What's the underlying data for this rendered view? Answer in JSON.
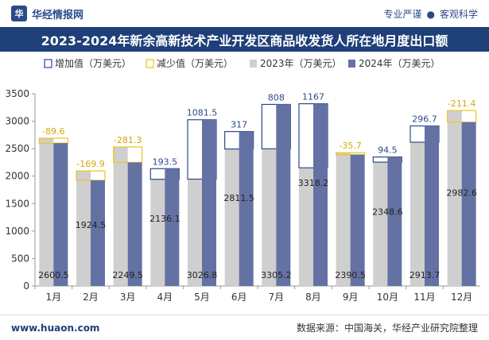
{
  "header": {
    "brand": "华经情报网",
    "slogan_left": "专业严谨",
    "slogan_sep": "●",
    "slogan_right": "客观科学"
  },
  "title": "2023-2024年新余高新技术产业开发区商品收发货人所在地月度出口额",
  "footer": {
    "url": "www.huaon.com",
    "source": "数据来源：中国海关，华经产业研究院整理"
  },
  "colors": {
    "bar2023": "#cfcfcf",
    "bar2024": "#6472a3",
    "increase": "#2b4a8a",
    "decrease": "#f0c419",
    "title_bg": "#1f3f78"
  },
  "chart_data": {
    "type": "bar",
    "categories": [
      "1月",
      "2月",
      "3月",
      "4月",
      "5月",
      "6月",
      "7月",
      "8月",
      "9月",
      "10月",
      "11月",
      "12月"
    ],
    "series": [
      {
        "name": "2023年（万美元）",
        "values": [
          2690.1,
          2094.4,
          2530.8,
          1942.6,
          1945.3,
          2494.5,
          2497.2,
          2151.2,
          2426.2,
          2254.1,
          2617.1,
          3194.1
        ]
      },
      {
        "name": "2024年（万美元）",
        "values": [
          2600.5,
          1924.5,
          2249.5,
          2136.1,
          3026.8,
          2811.5,
          3305.2,
          3318.2,
          2390.5,
          2348.6,
          2913.7,
          2982.6
        ]
      }
    ],
    "change_series": [
      {
        "name": "增加值（万美元）",
        "kind": "increase"
      },
      {
        "name": "减少值（万美元）",
        "kind": "decrease"
      }
    ],
    "change": [
      -89.6,
      -169.9,
      -281.3,
      193.5,
      1081.5,
      317,
      808,
      1167,
      -35.7,
      94.5,
      296.7,
      -211.4
    ],
    "change_labels": [
      "-89.6",
      "-169.9",
      "-281.3",
      "193.5",
      "1081.5",
      "317",
      "808",
      "1167",
      "-35.7",
      "94.5",
      "296.7",
      "-211.4"
    ],
    "value_labels_2024": [
      "2600.5",
      "1924.5",
      "2249.5",
      "2136.1",
      "3026.8",
      "2811.5",
      "3305.2",
      "3318.2",
      "2390.5",
      "2348.6",
      "2913.7",
      "2982.6"
    ],
    "ylim": [
      0,
      3500
    ],
    "yticks": [
      0,
      500,
      1000,
      1500,
      2000,
      2500,
      3000,
      3500
    ],
    "legend_position": "top-left",
    "grid": false
  }
}
